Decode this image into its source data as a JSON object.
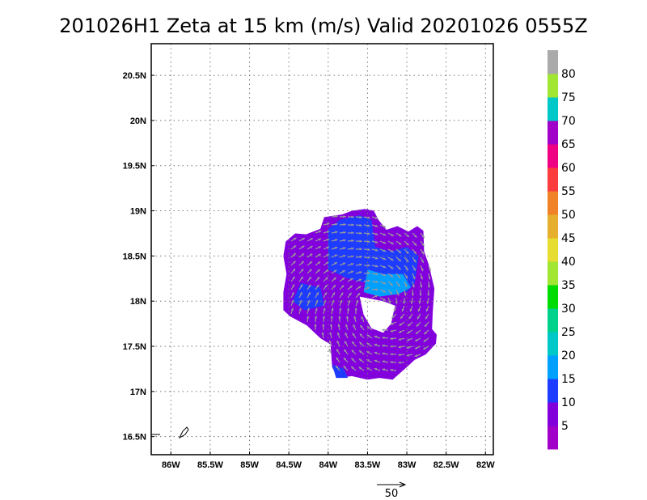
{
  "chart_data": {
    "type": "heatmap",
    "title": "201026H1 Zeta at 15 km (m/s) Valid 20201026 0555Z",
    "x_ticks": [
      "86W",
      "85.5W",
      "85W",
      "84.5W",
      "84W",
      "83.5W",
      "83W",
      "82.5W",
      "82W"
    ],
    "y_ticks": [
      "20.5N",
      "20N",
      "19.5N",
      "19N",
      "18.5N",
      "18N",
      "17.5N",
      "17N",
      "16.5N"
    ],
    "xlim": [
      -86.25,
      -81.9
    ],
    "ylim": [
      16.3,
      20.85
    ],
    "grid": true,
    "colorbar": {
      "levels": [
        0,
        5,
        10,
        15,
        20,
        25,
        30,
        35,
        40,
        45,
        50,
        55,
        60,
        65,
        70,
        75,
        80,
        85
      ],
      "labels": [
        "5",
        "10",
        "15",
        "20",
        "25",
        "30",
        "35",
        "40",
        "45",
        "50",
        "55",
        "60",
        "65",
        "70",
        "75",
        "80"
      ],
      "colors": [
        "#a000c8",
        "#8200dc",
        "#1e3cff",
        "#00a0ff",
        "#00c8c8",
        "#00d28c",
        "#00dc00",
        "#a0e632",
        "#e6dc32",
        "#e6af2d",
        "#f08228",
        "#fa3c3c",
        "#f00082",
        "#a000c8",
        "#00c8c8",
        "#a0e632",
        "#aaaaaa"
      ]
    },
    "reference_vector": {
      "label": "50",
      "value": 50
    },
    "field_regions": [
      {
        "level_ms": 5,
        "polygon_lonlat": [
          [
            -84.54,
            18.66
          ],
          [
            -84.42,
            18.75
          ],
          [
            -84.28,
            18.74
          ],
          [
            -84.1,
            18.8
          ],
          [
            -84.05,
            18.93
          ],
          [
            -83.82,
            18.96
          ],
          [
            -83.7,
            19.0
          ],
          [
            -83.53,
            19.02
          ],
          [
            -83.42,
            19.0
          ],
          [
            -83.36,
            18.9
          ],
          [
            -83.26,
            18.79
          ],
          [
            -83.12,
            18.83
          ],
          [
            -82.98,
            18.77
          ],
          [
            -82.87,
            18.83
          ],
          [
            -82.79,
            18.78
          ],
          [
            -82.78,
            18.55
          ],
          [
            -82.72,
            18.4
          ],
          [
            -82.65,
            18.14
          ],
          [
            -82.67,
            17.88
          ],
          [
            -82.68,
            17.69
          ],
          [
            -82.62,
            17.63
          ],
          [
            -82.63,
            17.53
          ],
          [
            -82.76,
            17.41
          ],
          [
            -82.9,
            17.35
          ],
          [
            -83.0,
            17.27
          ],
          [
            -83.18,
            17.13
          ],
          [
            -83.35,
            17.15
          ],
          [
            -83.5,
            17.13
          ],
          [
            -83.7,
            17.17
          ],
          [
            -83.88,
            17.15
          ],
          [
            -83.95,
            17.27
          ],
          [
            -83.97,
            17.52
          ],
          [
            -84.1,
            17.59
          ],
          [
            -84.27,
            17.73
          ],
          [
            -84.48,
            17.83
          ],
          [
            -84.57,
            17.9
          ],
          [
            -84.57,
            18.1
          ],
          [
            -84.53,
            18.3
          ],
          [
            -84.57,
            18.5
          ]
        ]
      },
      {
        "level_ms": 10,
        "polygon_lonlat": [
          [
            -84.0,
            18.8
          ],
          [
            -83.85,
            18.9
          ],
          [
            -83.6,
            18.95
          ],
          [
            -83.45,
            18.9
          ],
          [
            -83.4,
            18.6
          ],
          [
            -83.2,
            18.55
          ],
          [
            -83.0,
            18.6
          ],
          [
            -82.85,
            18.5
          ],
          [
            -82.9,
            18.2
          ],
          [
            -83.0,
            18.1
          ],
          [
            -83.2,
            18.15
          ],
          [
            -83.5,
            18.2
          ],
          [
            -83.75,
            18.25
          ],
          [
            -84.0,
            18.35
          ]
        ]
      },
      {
        "level_ms": 15,
        "polygon_lonlat": [
          [
            -83.5,
            18.35
          ],
          [
            -83.3,
            18.3
          ],
          [
            -83.05,
            18.3
          ],
          [
            -82.95,
            18.15
          ],
          [
            -83.1,
            18.08
          ],
          [
            -83.35,
            18.05
          ],
          [
            -83.55,
            18.1
          ]
        ]
      },
      {
        "level_ms": 10,
        "polygon_lonlat": [
          [
            -84.35,
            18.2
          ],
          [
            -84.1,
            18.15
          ],
          [
            -84.05,
            17.95
          ],
          [
            -84.3,
            17.9
          ],
          [
            -84.45,
            18.0
          ]
        ]
      },
      {
        "level_ms": 10,
        "polygon_lonlat": [
          [
            -83.95,
            17.3
          ],
          [
            -83.8,
            17.25
          ],
          [
            -83.75,
            17.15
          ],
          [
            -83.9,
            17.15
          ]
        ]
      },
      {
        "level_ms": 0,
        "polygon_lonlat": [
          [
            -83.6,
            18.05
          ],
          [
            -83.3,
            18.0
          ],
          [
            -83.15,
            17.95
          ],
          [
            -83.2,
            17.75
          ],
          [
            -83.3,
            17.65
          ],
          [
            -83.45,
            17.7
          ],
          [
            -83.55,
            17.85
          ]
        ]
      }
    ]
  }
}
